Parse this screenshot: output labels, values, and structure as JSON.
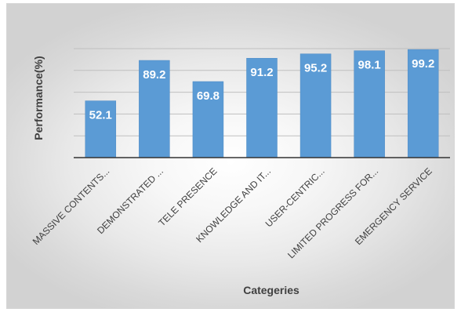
{
  "chart_data": {
    "type": "bar",
    "title": "",
    "xlabel": "Categeries",
    "ylabel": "Performance(%)",
    "categories": [
      "MASSIVE CONTENTS...",
      "DEMONSTRATED ...",
      "TELE PRESENCE",
      "KNOWLEDGE AND IT...",
      "USER-CENTRIC...",
      "LIMITED PROGRESS FOR...",
      "EMERGENCY SERVICE"
    ],
    "values": [
      52.1,
      89.2,
      69.8,
      91.2,
      95.2,
      98.1,
      99.2
    ],
    "value_labels": [
      "52.1",
      "89.2",
      "69.8",
      "91.2",
      "95.2",
      "98.1",
      "99.2"
    ],
    "ylim": [
      0,
      100
    ],
    "grid": true,
    "legend": "none",
    "bar_color": "#5b9bd5",
    "label_color": "#ffffff"
  }
}
